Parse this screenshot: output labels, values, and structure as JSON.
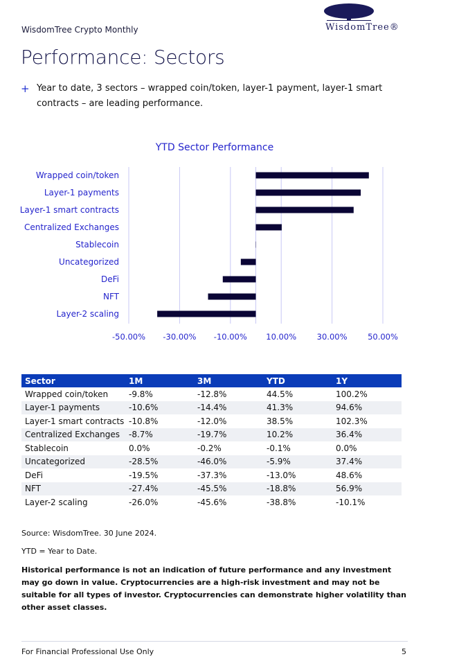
{
  "header": {
    "publication": "WisdomTree Crypto Monthly",
    "logo_text": "WisdomTree®"
  },
  "title": "Performance: Sectors",
  "bullet": "Year to date, 3 sectors – wrapped coin/token, layer-1 payment, layer-1 smart contracts – are leading performance.",
  "bullet_marker": "+",
  "chart_data": {
    "type": "bar",
    "orientation": "horizontal",
    "title": "YTD Sector Performance",
    "categories": [
      "Wrapped coin/token",
      "Layer-1 payments",
      "Layer-1 smart contracts",
      "Centralized Exchanges",
      "Stablecoin",
      "Uncategorized",
      "DeFi",
      "NFT",
      "Layer-2 scaling"
    ],
    "values": [
      44.5,
      41.3,
      38.5,
      10.2,
      -0.1,
      -5.9,
      -13.0,
      -18.8,
      -38.8
    ],
    "xlim": [
      -50,
      50
    ],
    "xticks": [
      -50,
      -30,
      -10,
      10,
      30,
      50
    ],
    "xtick_labels": [
      "-50.00%",
      "-30.00%",
      "-10.00%",
      "10.00%",
      "30.00%",
      "50.00%"
    ],
    "grid": true,
    "bar_color": "#0a0535",
    "label_color": "#2424cc"
  },
  "table": {
    "headers": [
      "Sector",
      "1M",
      "3M",
      "YTD",
      "1Y"
    ],
    "rows": [
      [
        "Wrapped coin/token",
        "-9.8%",
        "-12.8%",
        "44.5%",
        "100.2%"
      ],
      [
        "Layer-1 payments",
        "-10.6%",
        "-14.4%",
        "41.3%",
        "94.6%"
      ],
      [
        "Layer-1 smart contracts",
        "-10.8%",
        "-12.0%",
        "38.5%",
        "102.3%"
      ],
      [
        "Centralized Exchanges",
        "-8.7%",
        "-19.7%",
        "10.2%",
        "36.4%"
      ],
      [
        "Stablecoin",
        "0.0%",
        "-0.2%",
        "-0.1%",
        "0.0%"
      ],
      [
        "Uncategorized",
        "-28.5%",
        "-46.0%",
        "-5.9%",
        "37.4%"
      ],
      [
        "DeFi",
        "-19.5%",
        "-37.3%",
        "-13.0%",
        "48.6%"
      ],
      [
        "NFT",
        "-27.4%",
        "-45.5%",
        "-18.8%",
        "56.9%"
      ],
      [
        "Layer-2 scaling",
        "-26.0%",
        "-45.6%",
        "-38.8%",
        "-10.1%"
      ]
    ]
  },
  "source": "Source: WisdomTree. 30 June 2024.",
  "ytd_note": "YTD = Year to Date.",
  "disclaimer": "Historical performance is not an indication of future performance and any investment may go down in value. Cryptocurrencies are a high-risk investment and may not be suitable for all types of investor. Cryptocurrencies can demonstrate higher volatility than other asset classes.",
  "footer": {
    "text": "For Financial Professional Use Only",
    "page": "5"
  }
}
